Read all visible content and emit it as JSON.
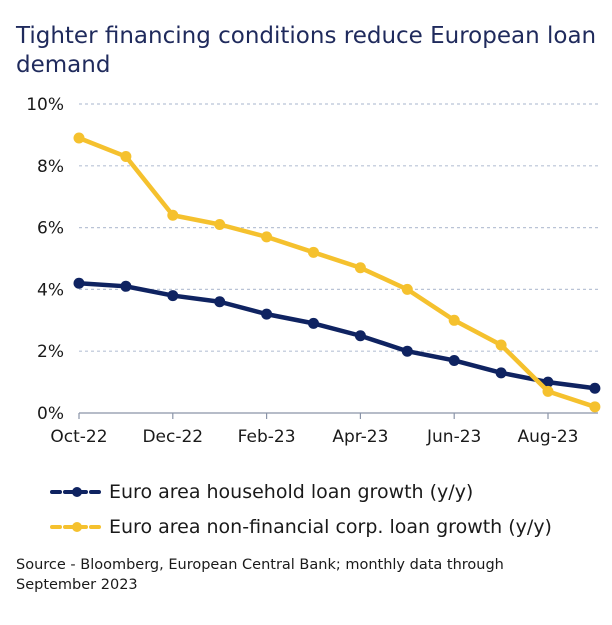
{
  "chart_data": {
    "type": "line",
    "title": "Tighter financing conditions reduce European loan demand",
    "xlabel": "",
    "ylabel": "",
    "ylim": [
      0,
      10
    ],
    "y_ticks": [
      "0%",
      "2%",
      "4%",
      "6%",
      "8%",
      "10%"
    ],
    "y_tick_values": [
      0,
      2,
      4,
      6,
      8,
      10
    ],
    "x_tick_labels": [
      "Oct-22",
      "Dec-22",
      "Feb-23",
      "Apr-23",
      "Jun-23",
      "Aug-23"
    ],
    "x_tick_indices": [
      0,
      2,
      4,
      6,
      8,
      10
    ],
    "categories": [
      "Oct-22",
      "Nov-22",
      "Dec-22",
      "Jan-23",
      "Feb-23",
      "Mar-23",
      "Apr-23",
      "May-23",
      "Jun-23",
      "Jul-23",
      "Aug-23",
      "Sep-23"
    ],
    "grid": "horizontal dashed",
    "legend_position": "bottom",
    "series": [
      {
        "name": "Euro area household loan growth (y/y)",
        "color": "#0f2361",
        "values": [
          4.2,
          4.1,
          3.8,
          3.6,
          3.2,
          2.9,
          2.5,
          2.0,
          1.7,
          1.3,
          1.0,
          0.8
        ]
      },
      {
        "name": "Euro area non-financial corp. loan growth (y/y)",
        "color": "#f5c12e",
        "values": [
          8.9,
          8.3,
          6.4,
          6.1,
          5.7,
          5.2,
          4.7,
          4.0,
          3.0,
          2.2,
          0.7,
          0.2
        ]
      }
    ]
  },
  "source_note": "Source - Bloomberg, European Central Bank; monthly data through September 2023"
}
